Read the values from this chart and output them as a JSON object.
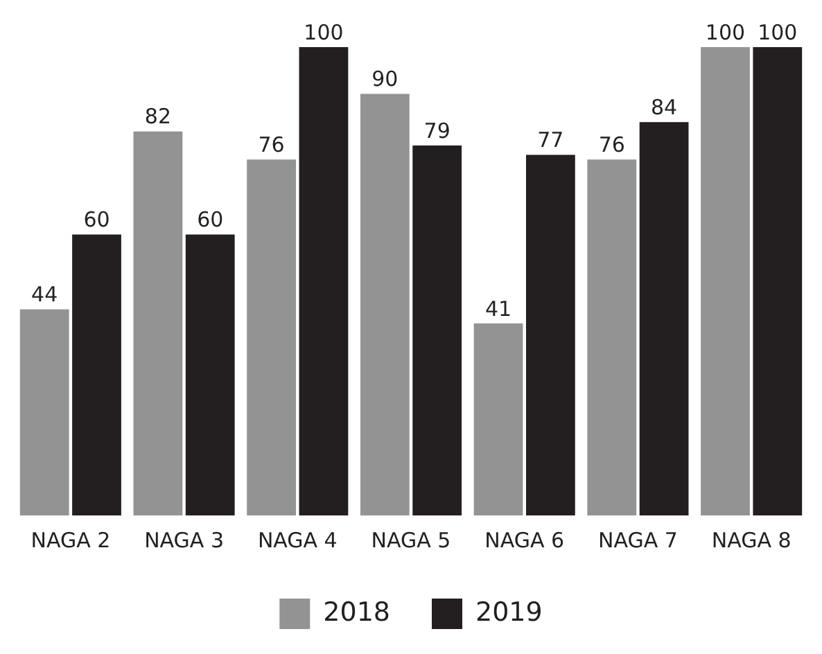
{
  "chart_data": {
    "type": "bar",
    "categories": [
      "NAGA 2",
      "NAGA 3",
      "NAGA 4",
      "NAGA 5",
      "NAGA 6",
      "NAGA 7",
      "NAGA 8"
    ],
    "series": [
      {
        "name": "2018",
        "color": "#939393",
        "values": [
          44,
          82,
          76,
          90,
          41,
          76,
          100
        ]
      },
      {
        "name": "2019",
        "color": "#231f20",
        "values": [
          60,
          60,
          100,
          79,
          77,
          84,
          100
        ]
      }
    ],
    "data_labels": true,
    "legend": "bottom",
    "tick_labels": "x"
  }
}
